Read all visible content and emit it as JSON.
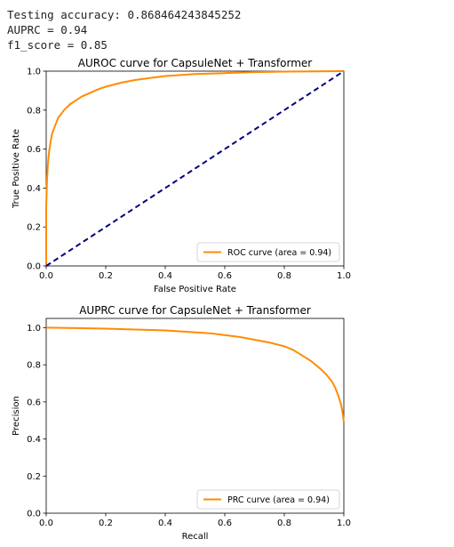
{
  "output": {
    "line1": "Testing accuracy: 0.868464243845252",
    "line2": "AUPRC = 0.94",
    "line3": "f1_score = 0.85"
  },
  "chart_data": [
    {
      "type": "line",
      "title": "AUROC curve for CapsuleNet + Transformer",
      "xlabel": "False Positive Rate",
      "ylabel": "True Positive Rate",
      "xlim": [
        0.0,
        1.0
      ],
      "ylim": [
        0.0,
        1.0
      ],
      "xticks": [
        "0.0",
        "0.2",
        "0.4",
        "0.6",
        "0.8",
        "1.0"
      ],
      "yticks": [
        "0.0",
        "0.2",
        "0.4",
        "0.6",
        "0.8",
        "1.0"
      ],
      "grid": false,
      "legend_position": "lower right",
      "series": [
        {
          "name": "ROC curve (area = 0.94)",
          "color": "#ff8c00",
          "style": "solid",
          "x": [
            0.0,
            0.0,
            0.003,
            0.006,
            0.01,
            0.015,
            0.02,
            0.03,
            0.04,
            0.05,
            0.06,
            0.08,
            0.1,
            0.12,
            0.15,
            0.18,
            0.2,
            0.25,
            0.3,
            0.35,
            0.4,
            0.5,
            0.6,
            0.7,
            0.8,
            0.9,
            1.0
          ],
          "y": [
            0.0,
            0.3,
            0.45,
            0.53,
            0.59,
            0.64,
            0.68,
            0.72,
            0.76,
            0.78,
            0.8,
            0.83,
            0.85,
            0.87,
            0.89,
            0.91,
            0.92,
            0.94,
            0.955,
            0.965,
            0.975,
            0.985,
            0.99,
            0.995,
            0.998,
            0.999,
            1.0
          ]
        },
        {
          "name": "",
          "color": "#000080",
          "style": "dashed",
          "x": [
            0.0,
            1.0
          ],
          "y": [
            0.0,
            1.0
          ]
        }
      ]
    },
    {
      "type": "line",
      "title": "AUPRC curve for CapsuleNet + Transformer",
      "xlabel": "Recall",
      "ylabel": "Precision",
      "xlim": [
        0.0,
        1.0
      ],
      "ylim": [
        0.0,
        1.05
      ],
      "xticks": [
        "0.0",
        "0.2",
        "0.4",
        "0.6",
        "0.8",
        "1.0"
      ],
      "yticks": [
        "0.0",
        "0.2",
        "0.4",
        "0.6",
        "0.8",
        "1.0"
      ],
      "grid": false,
      "legend_position": "lower right",
      "series": [
        {
          "name": "PRC curve (area = 0.94)",
          "color": "#ff8c00",
          "style": "solid",
          "x": [
            0.0,
            0.1,
            0.2,
            0.3,
            0.4,
            0.5,
            0.55,
            0.6,
            0.65,
            0.7,
            0.75,
            0.8,
            0.83,
            0.86,
            0.89,
            0.92,
            0.94,
            0.96,
            0.97,
            0.98,
            0.99,
            0.995,
            1.0
          ],
          "y": [
            1.0,
            0.998,
            0.995,
            0.99,
            0.985,
            0.975,
            0.97,
            0.96,
            0.95,
            0.935,
            0.92,
            0.9,
            0.88,
            0.85,
            0.82,
            0.78,
            0.75,
            0.71,
            0.68,
            0.64,
            0.59,
            0.55,
            0.49
          ]
        }
      ]
    }
  ]
}
